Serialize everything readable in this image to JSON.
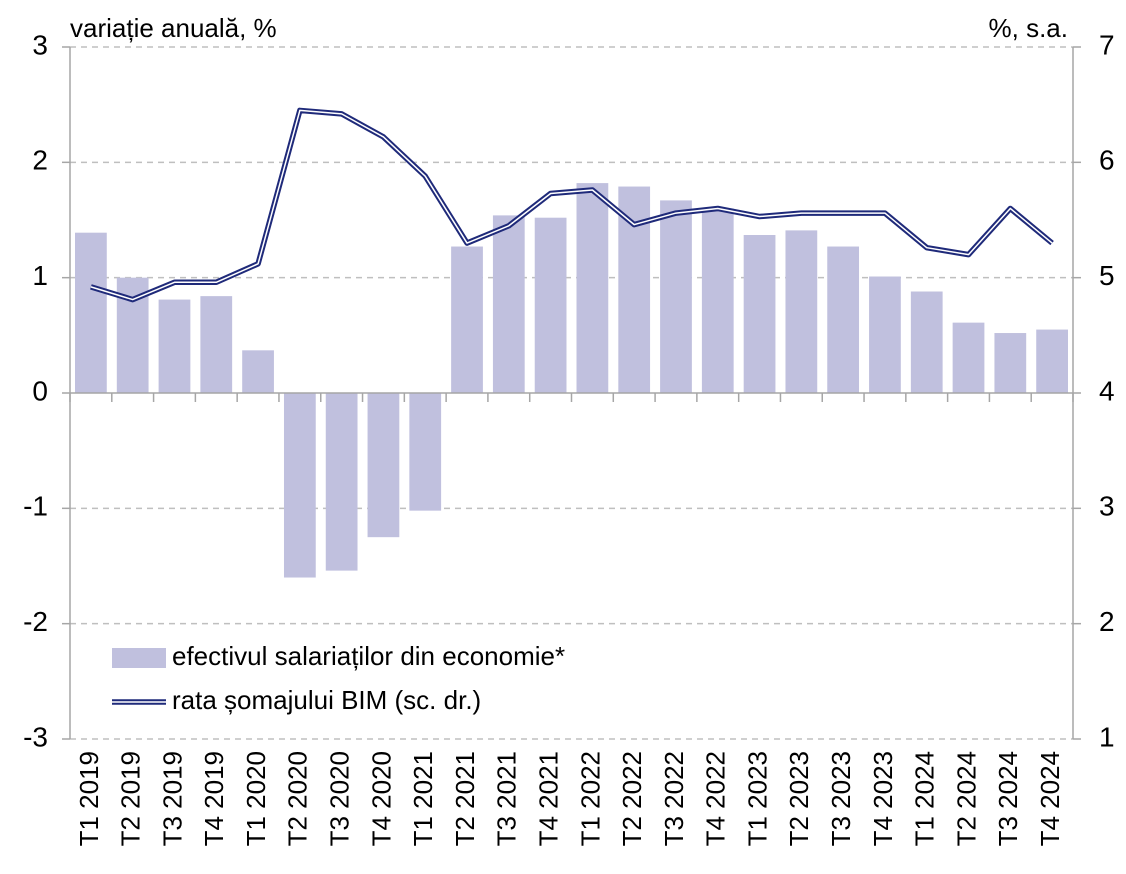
{
  "chart_data": {
    "type": "bar-line",
    "y_label": "variație anuală, %",
    "y2_label": "%, s.a.",
    "categories": [
      "T1 2019",
      "T2 2019",
      "T3 2019",
      "T4 2019",
      "T1 2020",
      "T2 2020",
      "T3 2020",
      "T4 2020",
      "T1 2021",
      "T2 2021",
      "T3 2021",
      "T4 2021",
      "T1 2022",
      "T2 2022",
      "T3 2022",
      "T4 2022",
      "T1 2023",
      "T2 2023",
      "T3 2023",
      "T4 2023",
      "T1 2024",
      "T2 2024",
      "T3 2024",
      "T4 2024"
    ],
    "series": [
      {
        "name": "efectivul salariaților din economie*",
        "type": "bar",
        "color": "#c0c0de",
        "values": [
          1.39,
          1.0,
          0.81,
          0.84,
          0.37,
          -1.6,
          -1.54,
          -1.25,
          -1.02,
          1.27,
          1.54,
          1.52,
          1.82,
          1.79,
          1.67,
          1.6,
          1.37,
          1.41,
          1.27,
          1.01,
          0.88,
          0.61,
          0.52,
          0.55
        ]
      },
      {
        "name": "rata șomajului BIM (sc. dr.)",
        "type": "line",
        "axis": "y2",
        "color": "#1f2a7a",
        "values": [
          4.92,
          4.81,
          4.96,
          4.96,
          5.12,
          6.45,
          6.42,
          6.22,
          5.88,
          5.3,
          5.45,
          5.73,
          5.76,
          5.46,
          5.56,
          5.6,
          5.53,
          5.56,
          5.56,
          5.56,
          5.26,
          5.2,
          5.6,
          5.3
        ]
      }
    ],
    "ylim": [
      -3,
      3
    ],
    "yticks": [
      -3,
      -2,
      -1,
      0,
      1,
      2,
      3
    ],
    "y2lim": [
      1,
      7
    ],
    "y2ticks": [
      1,
      2,
      3,
      4,
      5,
      6,
      7
    ],
    "grid": true,
    "legend": "bottom-left"
  }
}
